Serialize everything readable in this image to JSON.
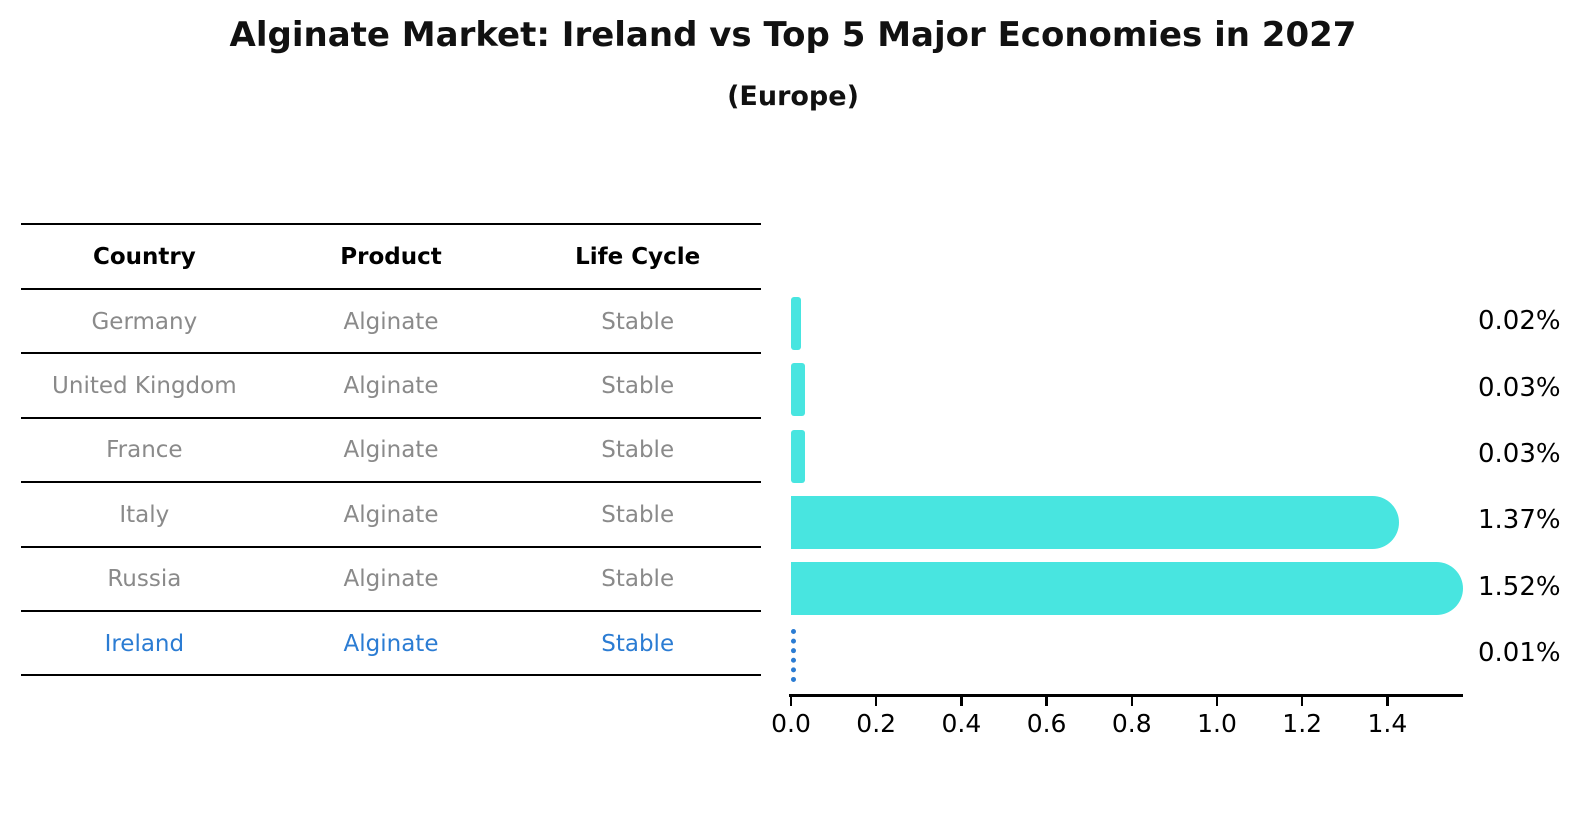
{
  "title": "Alginate Market: Ireland vs Top 5 Major Economies in 2027",
  "subtitle": "(Europe)",
  "table": {
    "headers": [
      "Country",
      "Product",
      "Life Cycle"
    ],
    "rows": [
      {
        "country": "Germany",
        "product": "Alginate",
        "life_cycle": "Stable",
        "highlight": false
      },
      {
        "country": "United Kingdom",
        "product": "Alginate",
        "life_cycle": "Stable",
        "highlight": false
      },
      {
        "country": "France",
        "product": "Alginate",
        "life_cycle": "Stable",
        "highlight": false
      },
      {
        "country": "Italy",
        "product": "Alginate",
        "life_cycle": "Stable",
        "highlight": false
      },
      {
        "country": "Russia",
        "product": "Alginate",
        "life_cycle": "Stable",
        "highlight": false
      },
      {
        "country": "Ireland",
        "product": "Alginate",
        "life_cycle": "Stable",
        "highlight": true
      }
    ]
  },
  "chart_data": {
    "type": "bar",
    "orientation": "horizontal",
    "title": "Alginate Market: Ireland vs Top 5 Major Economies in 2027",
    "subtitle": "(Europe)",
    "categories": [
      "Germany",
      "United Kingdom",
      "France",
      "Italy",
      "Russia",
      "Ireland"
    ],
    "values": [
      0.02,
      0.03,
      0.03,
      1.37,
      1.52,
      0.01
    ],
    "value_labels": [
      "0.02%",
      "0.03%",
      "0.03%",
      "1.37%",
      "1.52%",
      "0.01%"
    ],
    "xlim": [
      0,
      1.57
    ],
    "xticks": [
      0.0,
      0.2,
      0.4,
      0.6,
      0.8,
      1.0,
      1.2,
      1.4
    ],
    "xtick_labels": [
      "0.0",
      "0.2",
      "0.4",
      "0.6",
      "0.8",
      "1.0",
      "1.2",
      "1.4"
    ],
    "grid": false,
    "legend": false,
    "bar_color": "#48E5E0",
    "highlight_color": "#2B7CD3",
    "highlight_index": 5,
    "highlight_style": "dotted-outline"
  },
  "colors": {
    "background": "#ffffff",
    "bar": "#48E5E0",
    "highlight": "#2B7CD3",
    "table_text": "#8a8a8a",
    "header_text": "#111111",
    "axis": "#000000"
  }
}
